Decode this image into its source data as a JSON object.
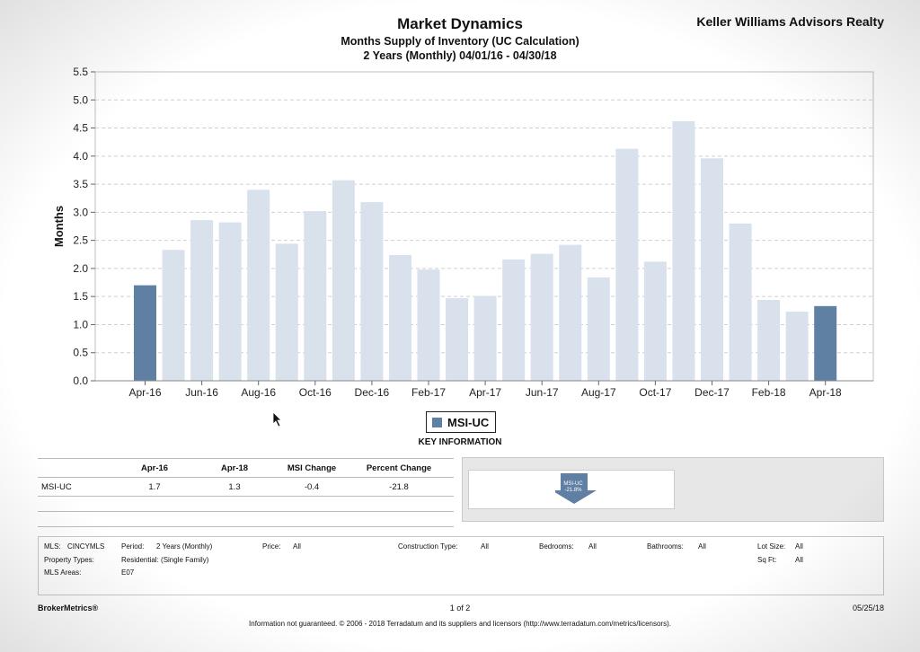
{
  "header": {
    "title": "Market Dynamics",
    "subtitle1": "Months Supply of Inventory (UC Calculation)",
    "subtitle2": "2 Years (Monthly) 04/01/16 - 04/30/18",
    "brand": "Keller Williams Advisors Realty"
  },
  "chart_data": {
    "type": "bar",
    "ylabel": "Months",
    "ylim": [
      0,
      5.5
    ],
    "yticks": [
      "0.0",
      "0.5",
      "1.0",
      "1.5",
      "2.0",
      "2.5",
      "3.0",
      "3.5",
      "4.0",
      "4.5",
      "5.0",
      "5.5"
    ],
    "categories": [
      "Apr-16",
      "May-16",
      "Jun-16",
      "Jul-16",
      "Aug-16",
      "Sep-16",
      "Oct-16",
      "Nov-16",
      "Dec-16",
      "Jan-17",
      "Feb-17",
      "Mar-17",
      "Apr-17",
      "May-17",
      "Jun-17",
      "Jul-17",
      "Aug-17",
      "Sep-17",
      "Oct-17",
      "Nov-17",
      "Dec-17",
      "Jan-18",
      "Feb-18",
      "Mar-18",
      "Apr-18"
    ],
    "xtick_labels": [
      "Apr-16",
      "Jun-16",
      "Aug-16",
      "Oct-16",
      "Dec-16",
      "Feb-17",
      "Apr-17",
      "Jun-17",
      "Aug-17",
      "Oct-17",
      "Dec-17",
      "Feb-18",
      "Apr-18"
    ],
    "values": [
      1.7,
      2.33,
      2.86,
      2.82,
      3.4,
      2.44,
      3.02,
      3.57,
      3.18,
      2.24,
      1.98,
      1.47,
      1.51,
      2.16,
      2.26,
      2.42,
      1.84,
      4.13,
      2.12,
      4.62,
      3.96,
      2.8,
      1.44,
      1.23,
      1.33
    ],
    "highlight_indices": [
      0,
      24
    ],
    "colors": {
      "highlight": "#5f7fa3",
      "normal": "#d8e1ec",
      "grid": "#d0d0d0"
    },
    "grid": true,
    "legend": {
      "position": "bottom-center",
      "label": "MSI-UC"
    }
  },
  "key_info": {
    "heading": "KEY INFORMATION",
    "columns": [
      "",
      "Apr-16",
      "Apr-18",
      "MSI Change",
      "Percent Change"
    ],
    "row": [
      "MSI-UC",
      "1.7",
      "1.3",
      "-0.4",
      "-21.8"
    ],
    "indicator": {
      "line1": "MSI-UC",
      "line2": "-21.8%",
      "direction": "down",
      "color": "#5f7fa3"
    }
  },
  "filters": {
    "mls_label": "MLS:",
    "mls_value": "CINCYMLS",
    "period_label": "Period:",
    "period_value": "2 Years (Monthly)",
    "price_label": "Price:",
    "price_value": "All",
    "construction_label": "Construction Type:",
    "construction_value": "All",
    "bedrooms_label": "Bedrooms:",
    "bedrooms_value": "All",
    "bathrooms_label": "Bathrooms:",
    "bathrooms_value": "All",
    "lotsize_label": "Lot Size:",
    "lotsize_value": "All",
    "proptype_label": "Property Types:",
    "proptype_value": "Residential: (Single Family)",
    "sqft_label": "Sq Ft:",
    "sqft_value": "All",
    "areas_label": "MLS Areas:",
    "areas_value": "E07"
  },
  "footer": {
    "left": "BrokerMetrics®",
    "center": "1 of 2",
    "right": "05/25/18",
    "disclaimer": "Information not guaranteed. © 2006 - 2018 Terradatum and its suppliers and licensors (http://www.terradatum.com/metrics/licensors)."
  }
}
